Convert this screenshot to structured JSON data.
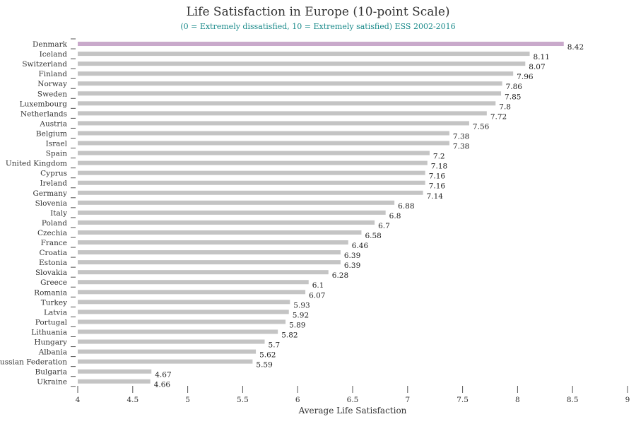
{
  "chart_data": {
    "type": "bar",
    "orientation": "horizontal",
    "title": "Life Satisfaction in Europe (10-point Scale)",
    "subtitle": "(0 = Extremely dissatisfied, 10 = Extremely satisfied) ESS 2002-2016",
    "xlabel": "Average Life Satisfaction",
    "ylabel": "",
    "xlim": [
      4,
      9
    ],
    "xticks": [
      4,
      4.5,
      5,
      5.5,
      6,
      6.5,
      7,
      7.5,
      8,
      8.5,
      9
    ],
    "xtick_labels": [
      "4",
      "4.5",
      "5",
      "5.5",
      "6",
      "6.5",
      "7",
      "7.5",
      "8",
      "8.5",
      "9"
    ],
    "grid": false,
    "bar_color": "#c4c4c4",
    "highlight_color": "#c9a9cb",
    "highlight_category": "Denmark",
    "categories": [
      "Denmark",
      "Iceland",
      "Switzerland",
      "Finland",
      "Norway",
      "Sweden",
      "Luxembourg",
      "Netherlands",
      "Austria",
      "Belgium",
      "Israel",
      "Spain",
      "United Kingdom",
      "Cyprus",
      "Ireland",
      "Germany",
      "Slovenia",
      "Italy",
      "Poland",
      "Czechia",
      "France",
      "Croatia",
      "Estonia",
      "Slovakia",
      "Greece",
      "Romania",
      "Turkey",
      "Latvia",
      "Portugal",
      "Lithuania",
      "Hungary",
      "Albania",
      "Russian Federation",
      "Bulgaria",
      "Ukraine"
    ],
    "values": [
      8.42,
      8.11,
      8.07,
      7.96,
      7.86,
      7.85,
      7.8,
      7.72,
      7.56,
      7.38,
      7.38,
      7.2,
      7.18,
      7.16,
      7.16,
      7.14,
      6.88,
      6.8,
      6.7,
      6.58,
      6.46,
      6.39,
      6.39,
      6.28,
      6.1,
      6.07,
      5.93,
      5.92,
      5.89,
      5.82,
      5.7,
      5.62,
      5.59,
      4.67,
      4.66
    ],
    "value_labels": [
      "8.42",
      "8.11",
      "8.07",
      "7.96",
      "7.86",
      "7.85",
      "7.8",
      "7.72",
      "7.56",
      "7.38",
      "7.38",
      "7.2",
      "7.18",
      "7.16",
      "7.16",
      "7.14",
      "6.88",
      "6.8",
      "6.7",
      "6.58",
      "6.46",
      "6.39",
      "6.39",
      "6.28",
      "6.1",
      "6.07",
      "5.93",
      "5.92",
      "5.89",
      "5.82",
      "5.7",
      "5.62",
      "5.59",
      "4.67",
      "4.66"
    ]
  }
}
